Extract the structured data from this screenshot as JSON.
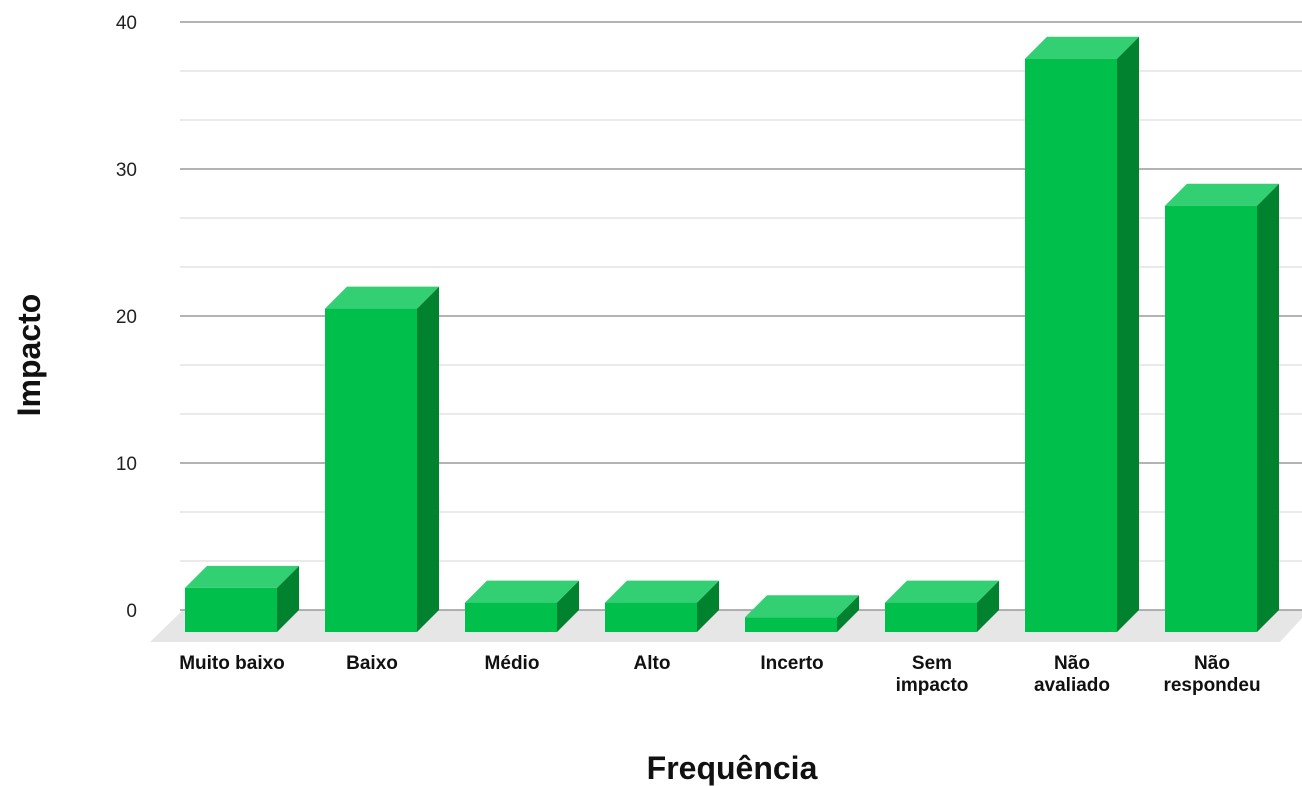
{
  "chart_data": {
    "type": "bar",
    "style": "3d",
    "categories": [
      [
        "Muito baixo"
      ],
      [
        "Baixo"
      ],
      [
        "Médio"
      ],
      [
        "Alto"
      ],
      [
        "Incerto"
      ],
      [
        "Sem",
        "impacto"
      ],
      [
        "Não",
        "avaliado"
      ],
      [
        "Não",
        "respondeu"
      ]
    ],
    "values": [
      3,
      22,
      2,
      2,
      1,
      2,
      39,
      29
    ],
    "xlabel": "Frequência",
    "ylabel": "Impacto",
    "ylim": [
      0,
      40
    ],
    "yticks": [
      0,
      10,
      20,
      30,
      40
    ],
    "grid": true,
    "legend": "none",
    "colors": {
      "bar_front": "#00c04b",
      "bar_top": "#33cf73",
      "bar_side": "#00822f",
      "floor": "#e6e6e6",
      "major_grid": "#9a9a9a",
      "minor_grid": "#dedede"
    }
  }
}
